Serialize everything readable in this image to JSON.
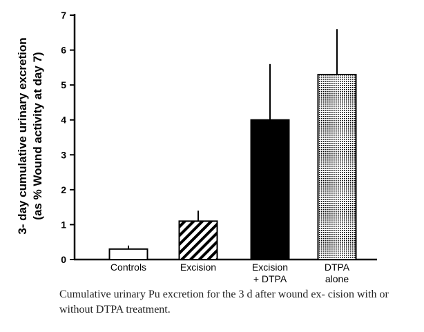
{
  "chart_data": {
    "type": "bar",
    "categories": [
      [
        "Controls"
      ],
      [
        "Excision"
      ],
      [
        "Excision",
        "+ DTPA"
      ],
      [
        "DTPA",
        "alone"
      ]
    ],
    "values": [
      0.3,
      1.1,
      4.0,
      5.3
    ],
    "error_upper": [
      0.4,
      1.4,
      5.6,
      6.6
    ],
    "fills": [
      "white",
      "hatched",
      "solid",
      "dotted"
    ],
    "ylabel": [
      "3- day cumulative urinary excretion",
      "(as % Wound activity at day 7)"
    ],
    "yticks": [
      0,
      1,
      2,
      3,
      4,
      5,
      6,
      7
    ],
    "ylim": [
      0,
      7
    ]
  },
  "caption": "Cumulative urinary Pu excretion for the 3 d after wound ex- cision with or without DTPA treatment.",
  "colors": {
    "bar_solid": "#000000",
    "axis": "#000000",
    "caption": "#222222"
  }
}
